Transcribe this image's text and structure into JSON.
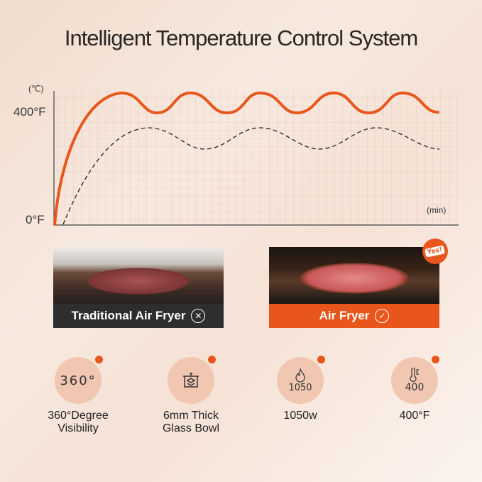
{
  "title": "Intelligent Temperature Control System",
  "chart": {
    "y_unit": "(℃)",
    "y_top_label": "400°F",
    "y_bottom_label": "0°F",
    "x_unit": "(min)",
    "colors": {
      "air_fryer": "#e8561c",
      "traditional": "#222222"
    }
  },
  "comparison": {
    "traditional": {
      "label": "Traditional Air Fryer",
      "icon": "x-circle-icon"
    },
    "air_fryer": {
      "label": "Air Fryer",
      "icon": "check-circle-icon",
      "badge": "Yes!"
    }
  },
  "features": [
    {
      "icon_text": "360°",
      "label_line1": "360°Degree",
      "label_line2": "Visibility"
    },
    {
      "icon_text": "",
      "label_line1": "6mm Thick",
      "label_line2": "Glass Bowl"
    },
    {
      "icon_text": "1050",
      "label_line1": "1050w",
      "label_line2": ""
    },
    {
      "icon_text": "400",
      "label_line1": "400°F",
      "label_line2": ""
    }
  ]
}
